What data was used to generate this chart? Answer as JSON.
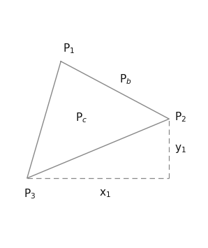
{
  "P1": [
    0.28,
    0.82
  ],
  "P2": [
    0.92,
    0.48
  ],
  "P3": [
    0.08,
    0.13
  ],
  "triangle_color": "#888888",
  "triangle_linewidth": 1.0,
  "dashed_color": "#888888",
  "dashed_linewidth": 0.9,
  "background_color": "#ffffff",
  "label_fontsize": 11,
  "label_color": "#111111",
  "figsize": [
    2.98,
    3.55
  ],
  "dpi": 100,
  "xlim": [
    -0.08,
    1.15
  ],
  "ylim": [
    -0.18,
    1.08
  ]
}
